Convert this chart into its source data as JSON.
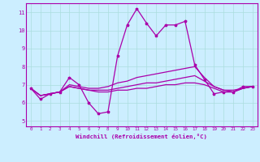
{
  "xlabel": "Windchill (Refroidissement éolien,°C)",
  "bg_color": "#cceeff",
  "grid_color": "#aadddd",
  "line_color": "#aa00aa",
  "xlim": [
    -0.5,
    23.5
  ],
  "ylim": [
    4.7,
    11.5
  ],
  "yticks": [
    5,
    6,
    7,
    8,
    9,
    10,
    11
  ],
  "xticks": [
    0,
    1,
    2,
    3,
    4,
    5,
    6,
    7,
    8,
    9,
    10,
    11,
    12,
    13,
    14,
    15,
    16,
    17,
    18,
    19,
    20,
    21,
    22,
    23
  ],
  "series": [
    [
      6.8,
      6.2,
      6.5,
      6.6,
      7.4,
      7.0,
      6.0,
      5.4,
      5.5,
      8.6,
      10.3,
      11.2,
      10.4,
      9.7,
      10.3,
      10.3,
      10.5,
      8.1,
      7.3,
      6.5,
      6.6,
      6.6,
      6.9,
      6.9
    ],
    [
      6.8,
      6.4,
      6.5,
      6.6,
      7.0,
      6.9,
      6.8,
      6.8,
      6.9,
      7.1,
      7.2,
      7.4,
      7.5,
      7.6,
      7.7,
      7.8,
      7.9,
      8.0,
      7.4,
      6.9,
      6.7,
      6.7,
      6.8,
      6.9
    ],
    [
      6.8,
      6.4,
      6.5,
      6.6,
      6.9,
      6.8,
      6.7,
      6.7,
      6.7,
      6.8,
      6.9,
      7.0,
      7.1,
      7.1,
      7.2,
      7.3,
      7.4,
      7.5,
      7.2,
      6.9,
      6.7,
      6.6,
      6.8,
      6.9
    ],
    [
      6.8,
      6.4,
      6.5,
      6.6,
      6.9,
      6.8,
      6.7,
      6.6,
      6.6,
      6.7,
      6.7,
      6.8,
      6.8,
      6.9,
      7.0,
      7.0,
      7.1,
      7.1,
      7.0,
      6.8,
      6.6,
      6.6,
      6.8,
      6.9
    ]
  ]
}
